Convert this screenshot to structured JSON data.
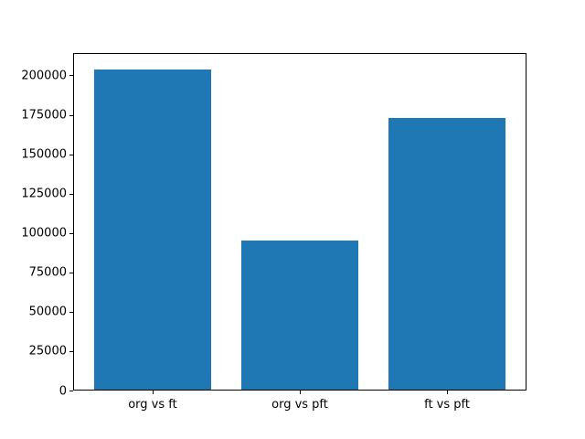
{
  "chart_data": {
    "type": "bar",
    "title": "",
    "xlabel": "",
    "ylabel": "",
    "categories": [
      "org vs ft",
      "org vs pft",
      "ft vs pft"
    ],
    "values": [
      204000,
      95000,
      173000
    ],
    "ylim": [
      0,
      214200
    ],
    "yticks": [
      0,
      25000,
      50000,
      75000,
      100000,
      125000,
      150000,
      175000,
      200000
    ],
    "bar_color": "#1f77b4",
    "axis_color": "#000000",
    "background_color": "#ffffff",
    "grid": false,
    "legend": null
  }
}
